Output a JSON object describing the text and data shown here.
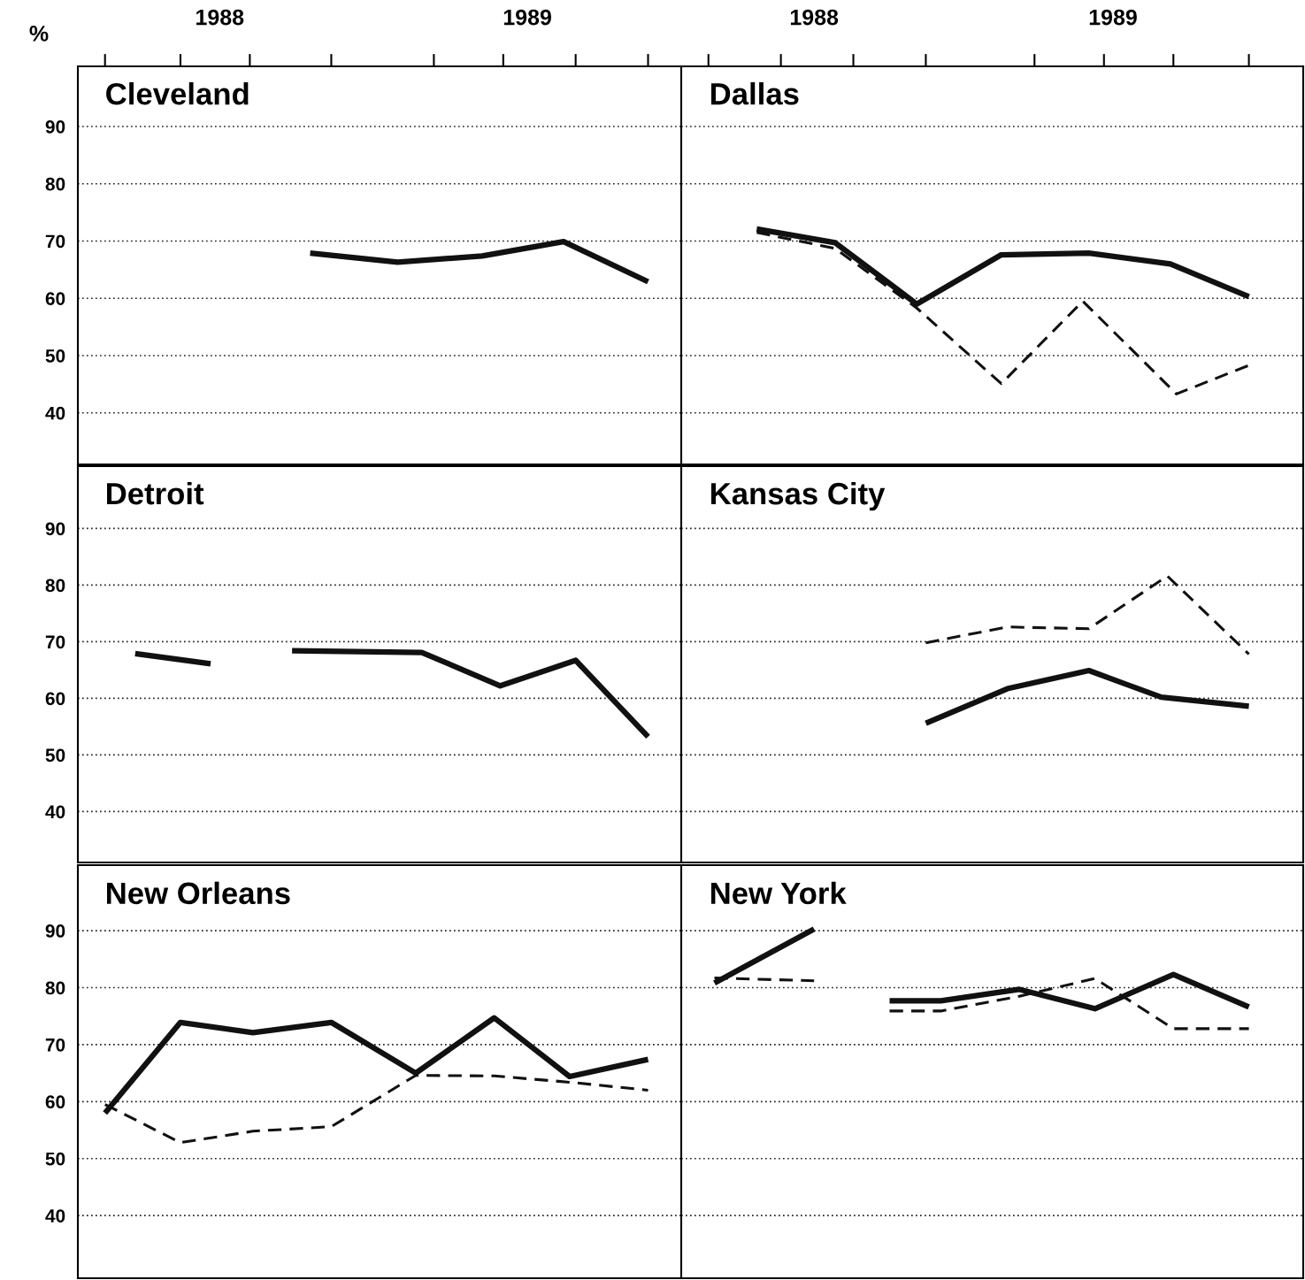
{
  "chart_data": [
    {
      "type": "line",
      "title": "Cleveland",
      "ylabel": "%",
      "tick_labels": true,
      "grid": "y",
      "xlim": [
        1988,
        1990
      ],
      "ylim": [
        31,
        100.5
      ],
      "yticks": [
        40,
        50,
        60,
        70,
        80,
        90
      ],
      "xticks": [
        {
          "value": 1988.09,
          "label": null
        },
        {
          "value": 1988.34,
          "label": null
        },
        {
          "value": 1988.57,
          "label": null
        },
        {
          "value": 1988.84,
          "label": null
        },
        {
          "value": 1989.18,
          "label": null
        },
        {
          "value": 1989.41,
          "label": null
        },
        {
          "value": 1989.65,
          "label": null
        },
        {
          "value": 1989.89,
          "label": null
        },
        {
          "value": 1988.47,
          "label": "1988"
        },
        {
          "value": 1989.49,
          "label": "1989"
        }
      ],
      "series": [
        {
          "color": "#111111",
          "line_style": "solid",
          "x": [
            1988.77,
            1989.06,
            1989.34,
            1989.61,
            1989.89
          ],
          "values": [
            67.9,
            66.3,
            67.4,
            69.9,
            62.9
          ]
        }
      ]
    },
    {
      "type": "line",
      "title": "Dallas",
      "tick_labels": "x",
      "grid": "y",
      "xlim": [
        1988,
        1990.06
      ],
      "ylim": [
        31,
        100.5
      ],
      "yticks": [
        40,
        50,
        60,
        70,
        80,
        90
      ],
      "xticks": [
        {
          "value": 1988.09,
          "label": null
        },
        {
          "value": 1988.33,
          "label": null
        },
        {
          "value": 1988.57,
          "label": null
        },
        {
          "value": 1988.81,
          "label": null
        },
        {
          "value": 1989.17,
          "label": null
        },
        {
          "value": 1989.4,
          "label": null
        },
        {
          "value": 1989.63,
          "label": null
        },
        {
          "value": 1989.88,
          "label": null
        },
        {
          "value": 1988.44,
          "label": "1988"
        },
        {
          "value": 1989.43,
          "label": "1989"
        }
      ],
      "series": [
        {
          "color": "#111111",
          "line_style": "solid",
          "x": [
            1988.25,
            1988.51,
            1988.78,
            1989.06,
            1989.35,
            1989.62,
            1989.88
          ],
          "values": [
            72.1,
            69.7,
            59,
            67.6,
            67.9,
            66,
            60.3
          ]
        },
        {
          "color": "#111111",
          "line_style": "dashed",
          "x": [
            1988.25,
            1988.51,
            1988.78,
            1989.06,
            1989.33,
            1989.64,
            1989.88
          ],
          "values": [
            71.5,
            68.7,
            58.3,
            45.1,
            59.5,
            43.3,
            48.3
          ]
        }
      ]
    },
    {
      "type": "line",
      "title": "Detroit",
      "tick_labels": "y",
      "grid": "y",
      "xlim": [
        1988,
        1990
      ],
      "ylim": [
        31,
        101
      ],
      "yticks": [
        40,
        50,
        60,
        70,
        80,
        90
      ],
      "series": [
        {
          "color": "#111111",
          "line_style": "solid",
          "x": [
            1988.19,
            1988.44,
            1988.57,
            1988.71,
            1989.14,
            1989.4,
            1989.65,
            1989.89
          ],
          "values": [
            67.9,
            66.1,
            null,
            68.4,
            68.1,
            62.2,
            66.7,
            53.2
          ]
        }
      ]
    },
    {
      "type": "line",
      "title": "Kansas City",
      "tick_labels": false,
      "grid": "y",
      "xlim": [
        1988,
        1990.06
      ],
      "ylim": [
        31,
        101
      ],
      "yticks": [
        40,
        50,
        60,
        70,
        80,
        90
      ],
      "series": [
        {
          "color": "#111111",
          "line_style": "dashed",
          "x": [
            1988.81,
            1989.08,
            1989.35,
            1989.61,
            1989.88
          ],
          "values": [
            69.8,
            72.6,
            72.3,
            81.6,
            67.8
          ]
        },
        {
          "color": "#111111",
          "line_style": "solid",
          "x": [
            1988.81,
            1989.08,
            1989.35,
            1989.59,
            1989.88
          ],
          "values": [
            55.6,
            61.7,
            64.9,
            60.2,
            58.6
          ]
        }
      ]
    },
    {
      "type": "line",
      "title": "New Orleans",
      "tick_labels": "y",
      "grid": "y",
      "xlim": [
        1988,
        1990
      ],
      "ylim": [
        29,
        101.5
      ],
      "yticks": [
        40,
        50,
        60,
        70,
        80,
        90
      ],
      "series": [
        {
          "color": "#111111",
          "line_style": "solid",
          "x": [
            1988.09,
            1988.34,
            1988.58,
            1988.84,
            1989.12,
            1989.38,
            1989.63,
            1989.89
          ],
          "values": [
            58,
            73.9,
            72.1,
            73.9,
            65,
            74.7,
            64.4,
            67.4
          ]
        },
        {
          "color": "#111111",
          "line_style": "dashed",
          "x": [
            1988.09,
            1988.34,
            1988.58,
            1988.84,
            1989.12,
            1989.38,
            1989.63,
            1989.89
          ],
          "values": [
            59.5,
            52.8,
            54.8,
            55.6,
            64.6,
            64.5,
            63.4,
            62
          ]
        }
      ]
    },
    {
      "type": "line",
      "title": "New York",
      "tick_labels": false,
      "grid": "y",
      "xlim": [
        1988,
        1990.06
      ],
      "ylim": [
        29,
        101.5
      ],
      "yticks": [
        40,
        50,
        60,
        70,
        80,
        90
      ],
      "series": [
        {
          "color": "#111111",
          "line_style": "solid",
          "x": [
            1988.11,
            1988.44,
            1988.56,
            1988.69,
            1988.86,
            1989.12,
            1989.37,
            1989.63,
            1989.88
          ],
          "values": [
            80.8,
            90.3,
            null,
            77.7,
            77.7,
            79.7,
            76.3,
            82.3,
            76.6
          ]
        },
        {
          "color": "#111111",
          "line_style": "dashed",
          "x": [
            1988.11,
            1988.44,
            1988.56,
            1988.69,
            1988.86,
            1989.12,
            1989.37,
            1989.63,
            1989.88
          ],
          "values": [
            81.7,
            81.2,
            null,
            75.9,
            75.9,
            78.5,
            81.6,
            72.8,
            72.8
          ]
        }
      ]
    }
  ]
}
